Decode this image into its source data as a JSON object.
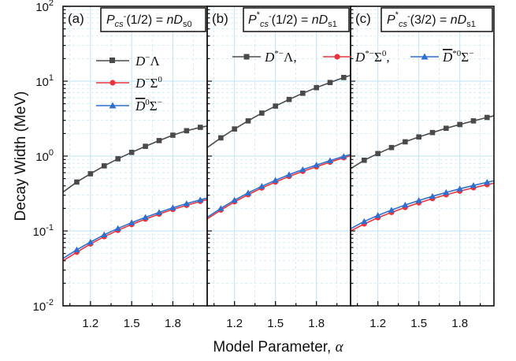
{
  "chart_data": {
    "type": "line",
    "ylabel": "Decay Width (MeV)",
    "xlabel": "Model Parameter, α",
    "yscale": "log",
    "ylim": [
      0.01,
      100
    ],
    "xlim": [
      1.0,
      2.05
    ],
    "xticks": [
      "1.2",
      "1.5",
      "1.8"
    ],
    "yticks": [
      {
        "value": 0.01,
        "base": "10",
        "exp": "-2"
      },
      {
        "value": 0.1,
        "base": "10",
        "exp": "-1"
      },
      {
        "value": 1,
        "base": "10",
        "exp": "0"
      },
      {
        "value": 10,
        "base": "10",
        "exp": "1"
      },
      {
        "value": 100,
        "base": "10",
        "exp": "2"
      }
    ],
    "grid": true,
    "colors": {
      "black_series": "#4a4a4a",
      "red_series": "#e8343a",
      "blue_series": "#2f6fd0",
      "grid": "#bfe3f2"
    },
    "x": [
      1.0,
      1.1,
      1.2,
      1.3,
      1.4,
      1.5,
      1.6,
      1.7,
      1.8,
      1.9,
      2.0,
      2.05
    ],
    "panels": [
      {
        "tag": "(a)",
        "title": "Pcs-(1/2) = nDs0",
        "legend_position": "left-upper",
        "series": [
          {
            "name": "D⁻Λ",
            "color": "#4a4a4a",
            "marker": "square",
            "values": [
              0.33,
              0.45,
              0.58,
              0.74,
              0.92,
              1.12,
              1.35,
              1.61,
              1.9,
              2.18,
              2.42,
              2.52
            ]
          },
          {
            "name": "D⁻Σ⁰",
            "color": "#e8343a",
            "marker": "circle",
            "values": [
              0.04,
              0.052,
              0.067,
              0.084,
              0.102,
              0.122,
              0.144,
              0.168,
              0.194,
              0.22,
              0.248,
              0.262
            ]
          },
          {
            "name": "D̄⁰Σ⁻",
            "color": "#2f6fd0",
            "marker": "triangle",
            "values": [
              0.043,
              0.056,
              0.071,
              0.089,
              0.108,
              0.129,
              0.152,
              0.177,
              0.204,
              0.232,
              0.26,
              0.275
            ]
          }
        ]
      },
      {
        "tag": "(b)",
        "title": "P*cs-(1/2) = nDs1",
        "legend_position": "top",
        "series": [
          {
            "name": "D*⁻Λ,",
            "color": "#4a4a4a",
            "marker": "square",
            "values": [
              1.3,
              1.75,
              2.3,
              2.95,
              3.75,
              4.65,
              5.7,
              6.9,
              8.2,
              9.6,
              11.2,
              12.0
            ]
          },
          {
            "name": "D*⁻Σ⁰,",
            "color": "#e8343a",
            "marker": "circle",
            "values": [
              0.145,
              0.19,
              0.245,
              0.305,
              0.375,
              0.45,
              0.535,
              0.625,
              0.72,
              0.83,
              0.95,
              1.01
            ]
          },
          {
            "name": "D̄*⁰Σ⁻",
            "color": "#2f6fd0",
            "marker": "triangle",
            "values": [
              0.152,
              0.2,
              0.258,
              0.322,
              0.395,
              0.475,
              0.565,
              0.66,
              0.76,
              0.87,
              0.99,
              1.05
            ]
          }
        ]
      },
      {
        "tag": "(c)",
        "title": "P*cs-(3/2) = nDs1",
        "legend_position": "top",
        "series": [
          {
            "name": "D*⁻Λ",
            "color": "#4a4a4a",
            "marker": "square",
            "values": [
              0.68,
              0.88,
              1.08,
              1.3,
              1.55,
              1.8,
              2.06,
              2.35,
              2.64,
              2.95,
              3.28,
              3.45
            ]
          },
          {
            "name": "D*⁻Σ⁰",
            "color": "#e8343a",
            "marker": "circle",
            "values": [
              0.1,
              0.124,
              0.15,
              0.177,
              0.206,
              0.237,
              0.27,
              0.304,
              0.34,
              0.377,
              0.415,
              0.435
            ]
          },
          {
            "name": "D̄*⁰Σ⁻",
            "color": "#2f6fd0",
            "marker": "triangle",
            "values": [
              0.107,
              0.134,
              0.161,
              0.19,
              0.222,
              0.255,
              0.29,
              0.327,
              0.365,
              0.405,
              0.447,
              0.468
            ]
          }
        ]
      }
    ]
  }
}
